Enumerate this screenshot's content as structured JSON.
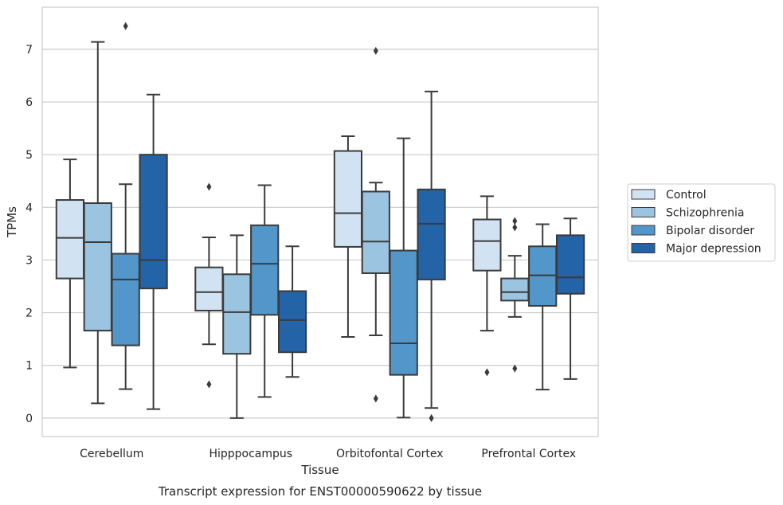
{
  "chart_data": {
    "type": "box",
    "title": "",
    "caption": "Transcript expression for ENST00000590622 by tissue",
    "xlabel": "Tissue",
    "ylabel": "TPMs",
    "ylim": [
      -0.35,
      7.8
    ],
    "yticks": [
      0,
      1,
      2,
      3,
      4,
      5,
      6,
      7
    ],
    "grid": "horizontal",
    "legend_position": "right",
    "categories": [
      "Cerebellum",
      "Hipppocampus",
      "Orbitofontal Cortex",
      "Prefrontal Cortex"
    ],
    "series": [
      {
        "name": "Control",
        "color": "#d1e2f2",
        "boxes": [
          {
            "whisker_low": 0.96,
            "q1": 2.65,
            "median": 3.42,
            "q3": 4.14,
            "whisker_high": 4.91,
            "outliers": []
          },
          {
            "whisker_low": 1.4,
            "q1": 2.04,
            "median": 2.39,
            "q3": 2.86,
            "whisker_high": 3.43,
            "outliers": [
              4.39,
              0.64
            ]
          },
          {
            "whisker_low": 1.54,
            "q1": 3.25,
            "median": 3.89,
            "q3": 5.07,
            "whisker_high": 5.35,
            "outliers": []
          },
          {
            "whisker_low": 1.66,
            "q1": 2.8,
            "median": 3.36,
            "q3": 3.77,
            "whisker_high": 4.21,
            "outliers": [
              0.87
            ]
          }
        ]
      },
      {
        "name": "Schizophrenia",
        "color": "#9ac4e0",
        "boxes": [
          {
            "whisker_low": 0.28,
            "q1": 1.66,
            "median": 3.34,
            "q3": 4.08,
            "whisker_high": 7.14,
            "outliers": []
          },
          {
            "whisker_low": 0.0,
            "q1": 1.22,
            "median": 2.01,
            "q3": 2.73,
            "whisker_high": 3.47,
            "outliers": []
          },
          {
            "whisker_low": 1.57,
            "q1": 2.75,
            "median": 3.35,
            "q3": 4.3,
            "whisker_high": 4.47,
            "outliers": [
              6.97,
              0.37
            ]
          },
          {
            "whisker_low": 1.92,
            "q1": 2.23,
            "median": 2.39,
            "q3": 2.65,
            "whisker_high": 3.08,
            "outliers": [
              3.74,
              3.62,
              0.94
            ]
          }
        ]
      },
      {
        "name": "Bipolar disorder",
        "color": "#5396c9",
        "boxes": [
          {
            "whisker_low": 0.55,
            "q1": 1.38,
            "median": 2.63,
            "q3": 3.12,
            "whisker_high": 4.44,
            "outliers": [
              7.44
            ]
          },
          {
            "whisker_low": 0.4,
            "q1": 1.96,
            "median": 2.93,
            "q3": 3.66,
            "whisker_high": 4.42,
            "outliers": []
          },
          {
            "whisker_low": 0.01,
            "q1": 0.82,
            "median": 1.42,
            "q3": 3.18,
            "whisker_high": 5.31,
            "outliers": []
          },
          {
            "whisker_low": 0.54,
            "q1": 2.13,
            "median": 2.71,
            "q3": 3.26,
            "whisker_high": 3.68,
            "outliers": []
          }
        ]
      },
      {
        "name": "Major depression",
        "color": "#2363a8",
        "boxes": [
          {
            "whisker_low": 0.17,
            "q1": 2.46,
            "median": 3.0,
            "q3": 5.0,
            "whisker_high": 6.14,
            "outliers": []
          },
          {
            "whisker_low": 0.78,
            "q1": 1.25,
            "median": 1.86,
            "q3": 2.41,
            "whisker_high": 3.26,
            "outliers": []
          },
          {
            "whisker_low": 0.19,
            "q1": 2.63,
            "median": 3.69,
            "q3": 4.34,
            "whisker_high": 6.2,
            "outliers": [
              0.0
            ]
          },
          {
            "whisker_low": 0.74,
            "q1": 2.36,
            "median": 2.67,
            "q3": 3.47,
            "whisker_high": 3.79,
            "outliers": []
          }
        ]
      }
    ]
  }
}
